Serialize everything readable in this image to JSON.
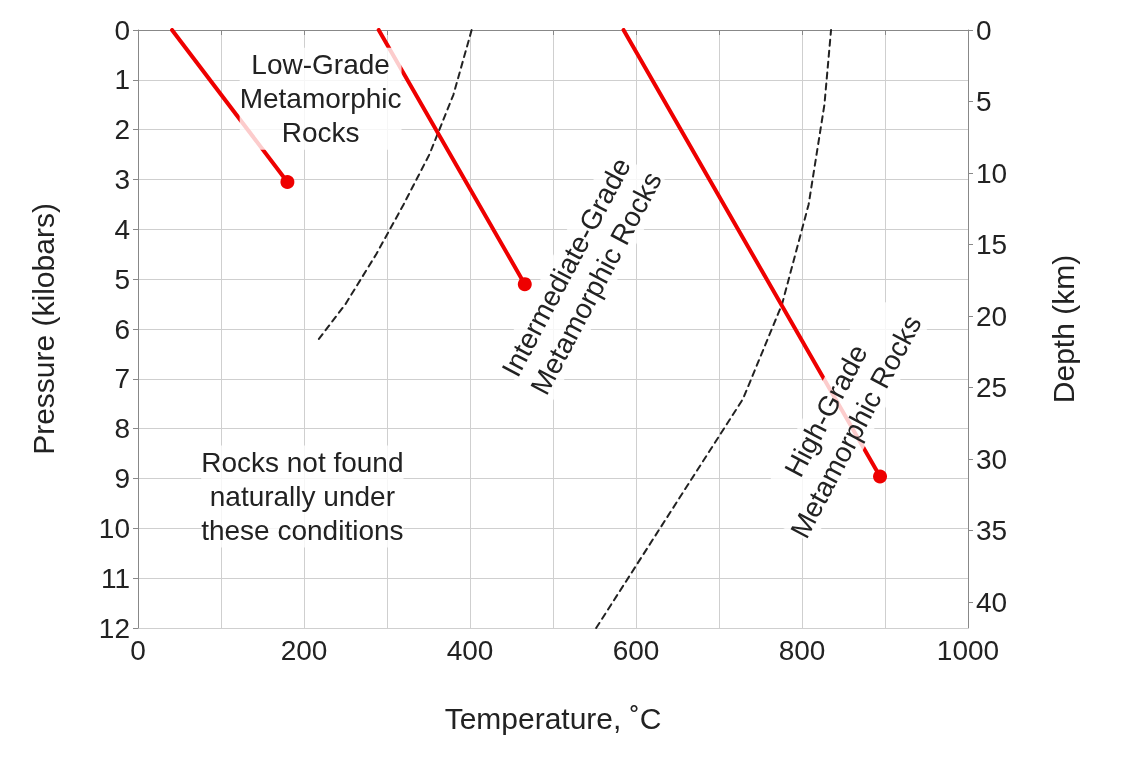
{
  "chart_data": {
    "type": "line",
    "xlabel": "Temperature, ˚C",
    "ylabel": "Pressure (kilobars)",
    "y2label": "Depth (km)",
    "xlim": [
      0,
      1000
    ],
    "xticks": [
      0,
      {
        "value": 100,
        "label": null
      },
      200,
      {
        "value": 300,
        "label": null
      },
      400,
      {
        "value": 500,
        "label": null
      },
      600,
      {
        "value": 700,
        "label": null
      },
      800,
      {
        "value": 900,
        "label": null
      },
      1000
    ],
    "ylim": [
      12,
      0
    ],
    "yticks": [
      0,
      1,
      2,
      3,
      4,
      5,
      6,
      7,
      8,
      9,
      10,
      11,
      12
    ],
    "y2lim": [
      41.8,
      0
    ],
    "y2ticks": [
      0,
      5,
      10,
      15,
      20,
      25,
      30,
      35,
      40
    ],
    "grid": true,
    "series": [
      {
        "x": [
          218,
          250,
          287,
          320,
          351,
          380,
          402
        ],
        "values": [
          6.2,
          5.5,
          4.5,
          3.5,
          2.5,
          1.3,
          0
        ],
        "color": "#222222",
        "line_style": "dashed",
        "marker": "none"
      },
      {
        "x": [
          552,
          652,
          729,
          776,
          808,
          827,
          835
        ],
        "values": [
          12,
          9.4,
          7.4,
          5.5,
          3.5,
          1.5,
          0
        ],
        "color": "#222222",
        "line_style": "dashed",
        "marker": "none"
      },
      {
        "x": [
          41,
          180
        ],
        "values": [
          0,
          3.05
        ],
        "color": "#ee0000",
        "line_style": "solid",
        "marker": "circle"
      },
      {
        "x": [
          290,
          466
        ],
        "values": [
          0,
          5.1
        ],
        "color": "#ee0000",
        "line_style": "solid",
        "marker": "circle"
      },
      {
        "x": [
          585,
          894
        ],
        "values": [
          0,
          8.96
        ],
        "color": "#ee0000",
        "line_style": "solid",
        "marker": "circle"
      }
    ],
    "annotations": [
      "Low-Grade\nMetamorphic\nRocks",
      "Intermediate-Grade\nMetamorphic Rocks",
      "High-Grade\nMetamorphic Rocks",
      "Rocks not found\nnaturally under\nthese conditions"
    ]
  }
}
